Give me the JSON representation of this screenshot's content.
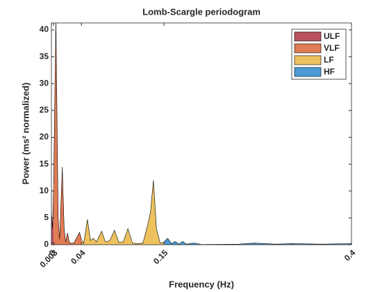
{
  "chart_data": {
    "type": "area",
    "title": "Lomb-Scargle periodogram",
    "x_label": "Frequency (Hz)",
    "y_label": "Power (ms² normalized)",
    "xlim": [
      0,
      0.4
    ],
    "ylim": [
      0,
      41.3
    ],
    "xticks": [
      0,
      0.003,
      0.04,
      0.15,
      0.4
    ],
    "yticks": [
      0,
      5,
      10,
      15,
      20,
      25,
      30,
      35,
      40
    ],
    "legend_position": "upper right",
    "series": [
      {
        "name": "ULF",
        "color": "#b9505d",
        "x": [
          0,
          0.0015,
          0.003
        ],
        "values": [
          6,
          3,
          11.5
        ]
      },
      {
        "name": "VLF",
        "color": "#e07b53",
        "x": [
          0.003,
          0.006,
          0.009,
          0.011,
          0.0145,
          0.017,
          0.019,
          0.0215,
          0.024,
          0.03,
          0.0375,
          0.04
        ],
        "values": [
          11.5,
          42,
          5,
          1,
          14.5,
          3,
          0.5,
          2.2,
          0.3,
          0.3,
          2.3,
          1
        ]
      },
      {
        "name": "LF",
        "color": "#edc25e",
        "x": [
          0.04,
          0.043,
          0.048,
          0.052,
          0.056,
          0.06,
          0.067,
          0.072,
          0.078,
          0.084,
          0.09,
          0.096,
          0.102,
          0.108,
          0.115,
          0.122,
          0.128,
          0.132,
          0.136,
          0.14,
          0.145,
          0.15
        ],
        "values": [
          1,
          0.2,
          4.7,
          0.8,
          1.2,
          0.5,
          2.5,
          0.5,
          0.8,
          2.7,
          0.4,
          0.6,
          3.0,
          0.3,
          0.2,
          0.3,
          3.5,
          6,
          12,
          3,
          0.3,
          0.5
        ]
      },
      {
        "name": "HF",
        "color": "#4a9bd6",
        "x": [
          0.15,
          0.155,
          0.16,
          0.165,
          0.17,
          0.175,
          0.18,
          0.19,
          0.2,
          0.25,
          0.27,
          0.3,
          0.32,
          0.36,
          0.4
        ],
        "values": [
          0.5,
          1.2,
          0.2,
          0.6,
          0.1,
          0.6,
          0.1,
          0.3,
          0.05,
          0.1,
          0.3,
          0.1,
          0.2,
          0.1,
          0.2
        ]
      }
    ]
  }
}
